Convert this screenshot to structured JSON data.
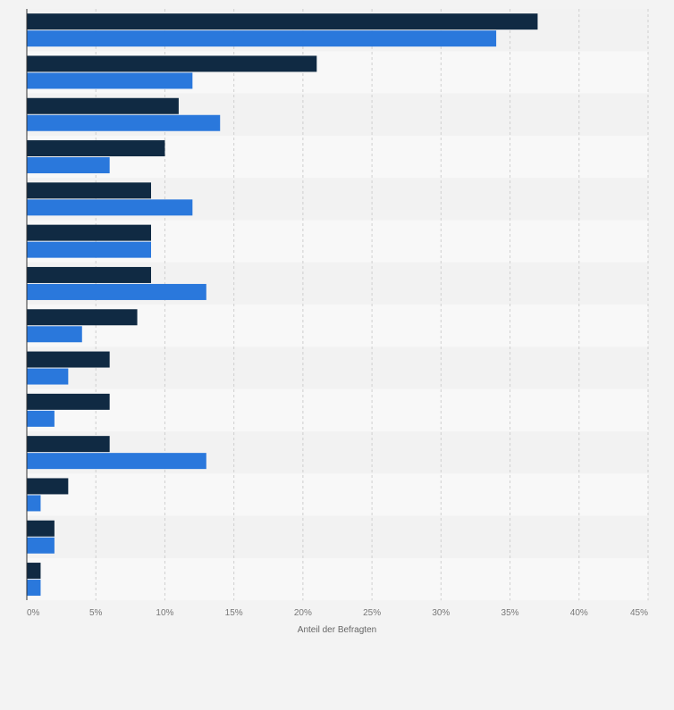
{
  "chart_data": {
    "type": "bar",
    "orientation": "horizontal",
    "categories": [
      "",
      "",
      "",
      "",
      "",
      "",
      "",
      "",
      "",
      "",
      "",
      "",
      "",
      ""
    ],
    "series": [
      {
        "values": [
          37,
          21,
          11,
          10,
          9,
          9,
          9,
          8,
          6,
          6,
          6,
          3,
          2,
          1
        ],
        "color": "#102a43"
      },
      {
        "values": [
          34,
          12,
          14,
          6,
          12,
          9,
          13,
          4,
          3,
          2,
          13,
          1,
          2,
          1
        ],
        "color": "#2a78dc"
      }
    ],
    "xlim": [
      0,
      45
    ],
    "xticks": [
      0,
      5,
      10,
      15,
      20,
      25,
      30,
      35,
      40,
      45
    ],
    "xtick_labels": [
      "0%",
      "5%",
      "10%",
      "15%",
      "20%",
      "25%",
      "30%",
      "35%",
      "40%",
      "45%"
    ],
    "xlabel": "Anteil der Befragten",
    "ylabel": "",
    "title": "",
    "grid": true,
    "legend": "none",
    "colors": {
      "background": "#f3f3f3",
      "band_light": "#f8f8f8",
      "band_dark": "#f2f2f2",
      "grid": "#cfcfcf",
      "axis": "#333333",
      "tick_text": "#777777"
    }
  }
}
